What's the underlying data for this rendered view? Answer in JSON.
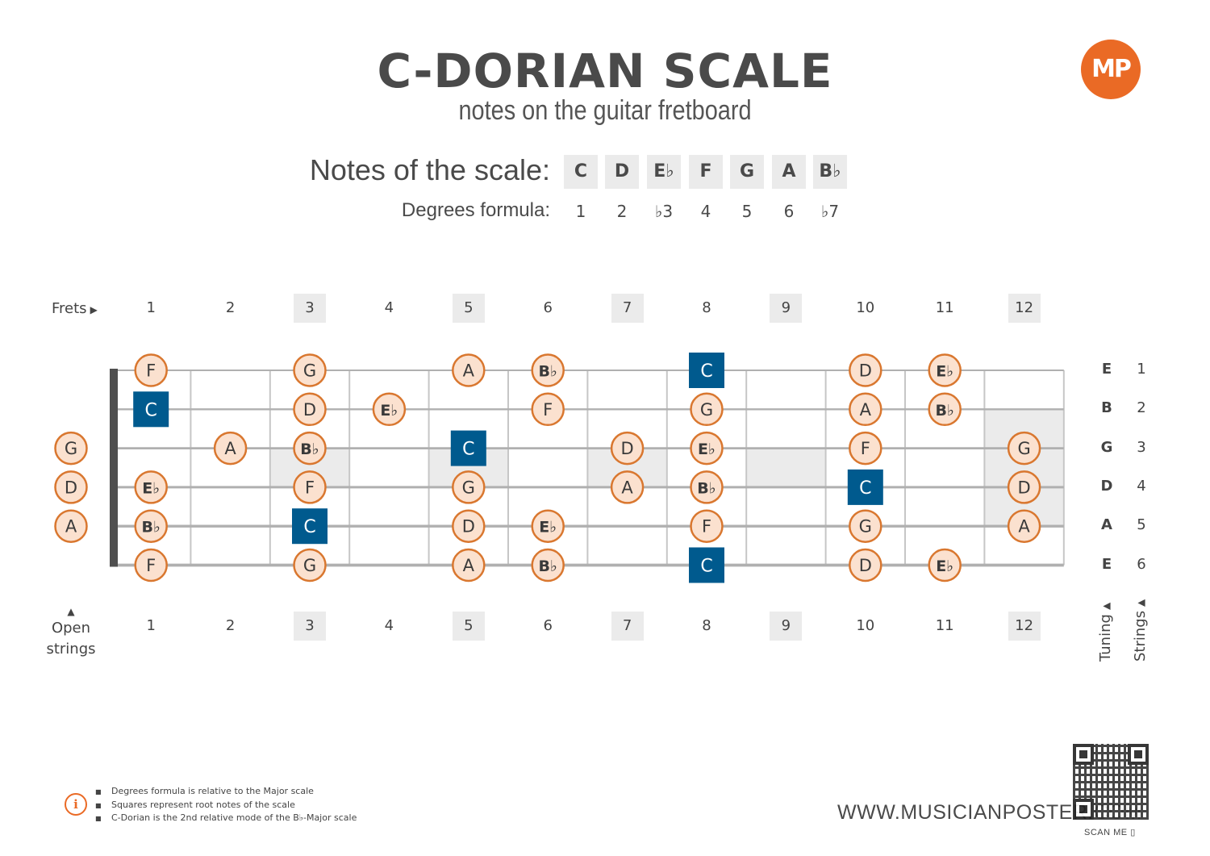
{
  "header": {
    "title": "C-DORIAN SCALE",
    "subtitle": "notes on the guitar fretboard",
    "logo_text": "MP",
    "brand_color": "#ea6a25"
  },
  "scale": {
    "notes_label": "Notes of the scale:",
    "degrees_label": "Degrees formula:",
    "notes": [
      "C",
      "D",
      "E♭",
      "F",
      "G",
      "A",
      "B♭"
    ],
    "degrees": [
      "1",
      "2",
      "♭3",
      "4",
      "5",
      "6",
      "♭7"
    ]
  },
  "fretboard": {
    "frets_label": "Frets",
    "open_label_line1": "Open",
    "open_label_line2": "strings",
    "tuning_label": "Tuning",
    "strings_label": "Strings",
    "fret_numbers": [
      "1",
      "2",
      "3",
      "4",
      "5",
      "6",
      "7",
      "8",
      "9",
      "10",
      "11",
      "12"
    ],
    "marked_frets": [
      3,
      5,
      7,
      9,
      12
    ],
    "tuning": [
      "E",
      "B",
      "G",
      "D",
      "A",
      "E"
    ],
    "string_numbers": [
      "1",
      "2",
      "3",
      "4",
      "5",
      "6"
    ],
    "strings": [
      [
        "",
        "F",
        "",
        "G",
        "",
        "A",
        "B♭",
        "",
        "C",
        "",
        "D",
        "E♭",
        ""
      ],
      [
        "",
        "C",
        "",
        "D",
        "E♭",
        "",
        "F",
        "",
        "G",
        "",
        "A",
        "B♭",
        ""
      ],
      [
        "G",
        "",
        "A",
        "B♭",
        "",
        "C",
        "",
        "D",
        "E♭",
        "",
        "F",
        "",
        "G"
      ],
      [
        "D",
        "E♭",
        "",
        "F",
        "",
        "G",
        "",
        "A",
        "B♭",
        "",
        "C",
        "",
        "D"
      ],
      [
        "A",
        "B♭",
        "",
        "C",
        "",
        "D",
        "E♭",
        "",
        "F",
        "",
        "G",
        "",
        "A"
      ],
      [
        "",
        "F",
        "",
        "G",
        "",
        "A",
        "B♭",
        "",
        "C",
        "",
        "D",
        "E♭",
        ""
      ]
    ],
    "root_note": "C",
    "colors": {
      "note_fill": "#fbe1cf",
      "note_border": "#d9772f",
      "root_fill": "#005a8e",
      "marker_shade": "#ebebeb",
      "nut": "#4f4f4f",
      "string": "#b0b0b0",
      "fret": "#c6c6c6"
    }
  },
  "footer": {
    "notes": [
      "Degrees formula is relative to the Major scale",
      "Squares represent root notes of the scale",
      "C-Dorian is the 2nd relative mode of the B♭-Major scale"
    ],
    "info_icon": "info-icon",
    "website": "WWW.MUSICIANPOSTER.COM",
    "scan_label": "SCAN ME",
    "scan_icon": "phone-icon"
  }
}
